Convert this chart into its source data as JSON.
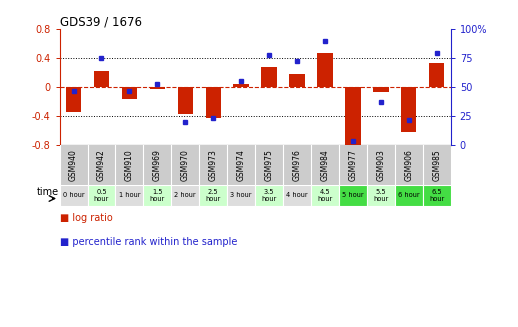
{
  "title": "GDS39 / 1676",
  "samples": [
    "GSM940",
    "GSM942",
    "GSM910",
    "GSM969",
    "GSM970",
    "GSM973",
    "GSM974",
    "GSM975",
    "GSM976",
    "GSM984",
    "GSM977",
    "GSM903",
    "GSM906",
    "GSM985"
  ],
  "time_labels": [
    "0 hour",
    "0.5\nhour",
    "1 hour",
    "1.5\nhour",
    "2 hour",
    "2.5\nhour",
    "3 hour",
    "3.5\nhour",
    "4 hour",
    "4.5\nhour",
    "5 hour",
    "5.5\nhour",
    "6 hour",
    "6.5\nhour"
  ],
  "log_ratio": [
    -0.35,
    0.22,
    -0.17,
    -0.02,
    -0.37,
    -0.43,
    0.05,
    0.28,
    0.18,
    0.47,
    -0.82,
    -0.07,
    -0.62,
    0.34
  ],
  "percentile": [
    47,
    75,
    47,
    53,
    20,
    23,
    55,
    78,
    73,
    90,
    3,
    37,
    22,
    80
  ],
  "ylim_left": [
    -0.8,
    0.8
  ],
  "ylim_right": [
    0,
    100
  ],
  "bar_color": "#cc2200",
  "dot_color": "#2222cc",
  "zero_line_color": "#cc2200",
  "bg_color": "#ffffff",
  "time_row_colors": [
    "#dddddd",
    "#ccffcc",
    "#dddddd",
    "#ccffcc",
    "#dddddd",
    "#ccffcc",
    "#dddddd",
    "#ccffcc",
    "#dddddd",
    "#ccffcc",
    "#44dd44",
    "#ccffcc",
    "#44dd44",
    "#44dd44"
  ],
  "sample_row_color": "#cccccc",
  "left_axis_color": "#cc2200",
  "right_axis_color": "#2222cc",
  "legend_bar_label": "log ratio",
  "legend_dot_label": "percentile rank within the sample"
}
